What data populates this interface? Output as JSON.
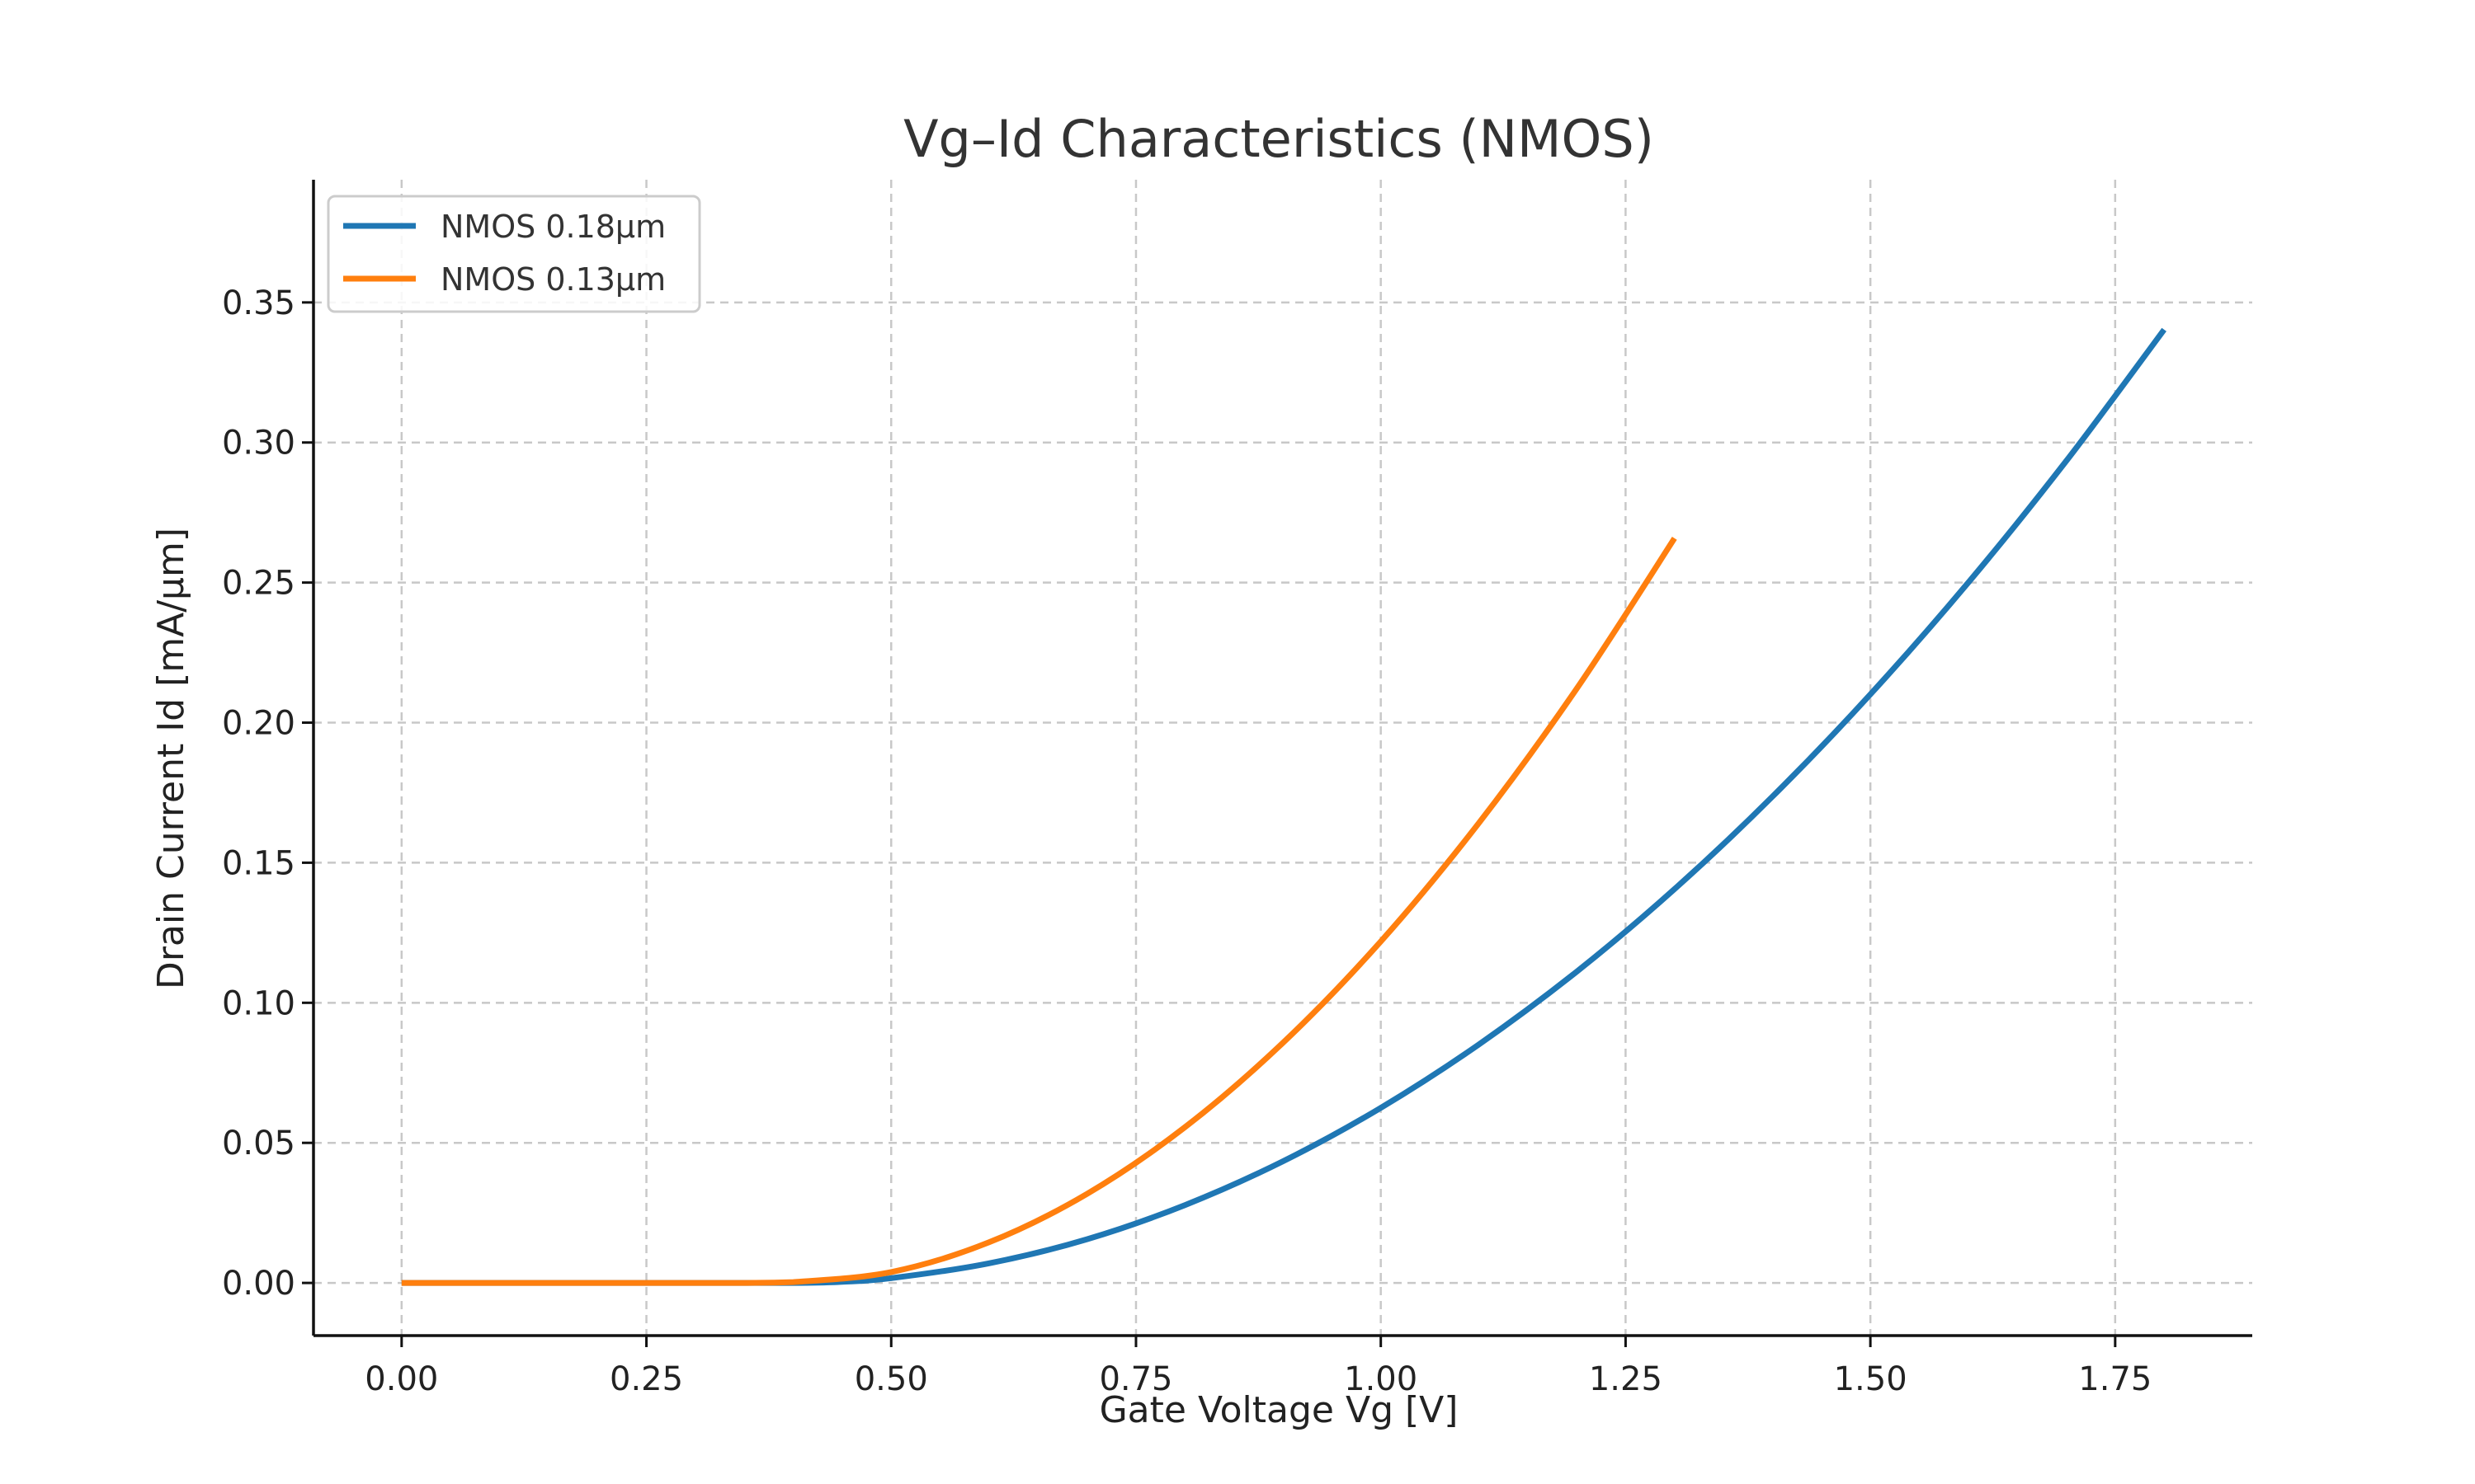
{
  "chart_data": {
    "type": "line",
    "title": "Vg–Id Characteristics (NMOS)",
    "xlabel": "Gate Voltage Vg [V]",
    "ylabel": "Drain Current Id [mA/µm]",
    "xlim": [
      -0.09,
      1.89
    ],
    "ylim": [
      -0.0188,
      0.3938
    ],
    "x_ticks": [
      0.0,
      0.25,
      0.5,
      0.75,
      1.0,
      1.25,
      1.5,
      1.75
    ],
    "x_tick_labels": [
      "0.00",
      "0.25",
      "0.50",
      "0.75",
      "1.00",
      "1.25",
      "1.50",
      "1.75"
    ],
    "y_ticks": [
      0.0,
      0.05,
      0.1,
      0.15,
      0.2,
      0.25,
      0.3,
      0.35
    ],
    "y_tick_labels": [
      "0.00",
      "0.05",
      "0.10",
      "0.15",
      "0.20",
      "0.25",
      "0.30",
      "0.35"
    ],
    "grid": true,
    "legend_position": "top-left",
    "series": [
      {
        "name": "NMOS 0.18µm",
        "color": "#1f77b4",
        "x": [
          0.0,
          0.1,
          0.2,
          0.3,
          0.4,
          0.45,
          0.5,
          0.6,
          0.7,
          0.8,
          0.9,
          1.0,
          1.1,
          1.2,
          1.3,
          1.4,
          1.5,
          1.6,
          1.7,
          1.8
        ],
        "y": [
          0.0,
          0.0,
          0.0,
          0.0,
          0.0,
          0.0004,
          0.0017,
          0.007,
          0.0156,
          0.0278,
          0.0434,
          0.0625,
          0.0851,
          0.1111,
          0.1406,
          0.1736,
          0.2101,
          0.25,
          0.2934,
          0.3403
        ]
      },
      {
        "name": "NMOS 0.13µm",
        "color": "#ff7f0e",
        "x": [
          0.0,
          0.1,
          0.2,
          0.3,
          0.35,
          0.4,
          0.5,
          0.6,
          0.7,
          0.8,
          0.9,
          1.0,
          1.1,
          1.2,
          1.3
        ],
        "y": [
          0.0,
          0.0,
          0.0,
          0.0,
          0.0,
          0.0003,
          0.0039,
          0.0145,
          0.0318,
          0.0556,
          0.0857,
          0.1219,
          0.1641,
          0.2121,
          0.2658
        ]
      }
    ]
  }
}
